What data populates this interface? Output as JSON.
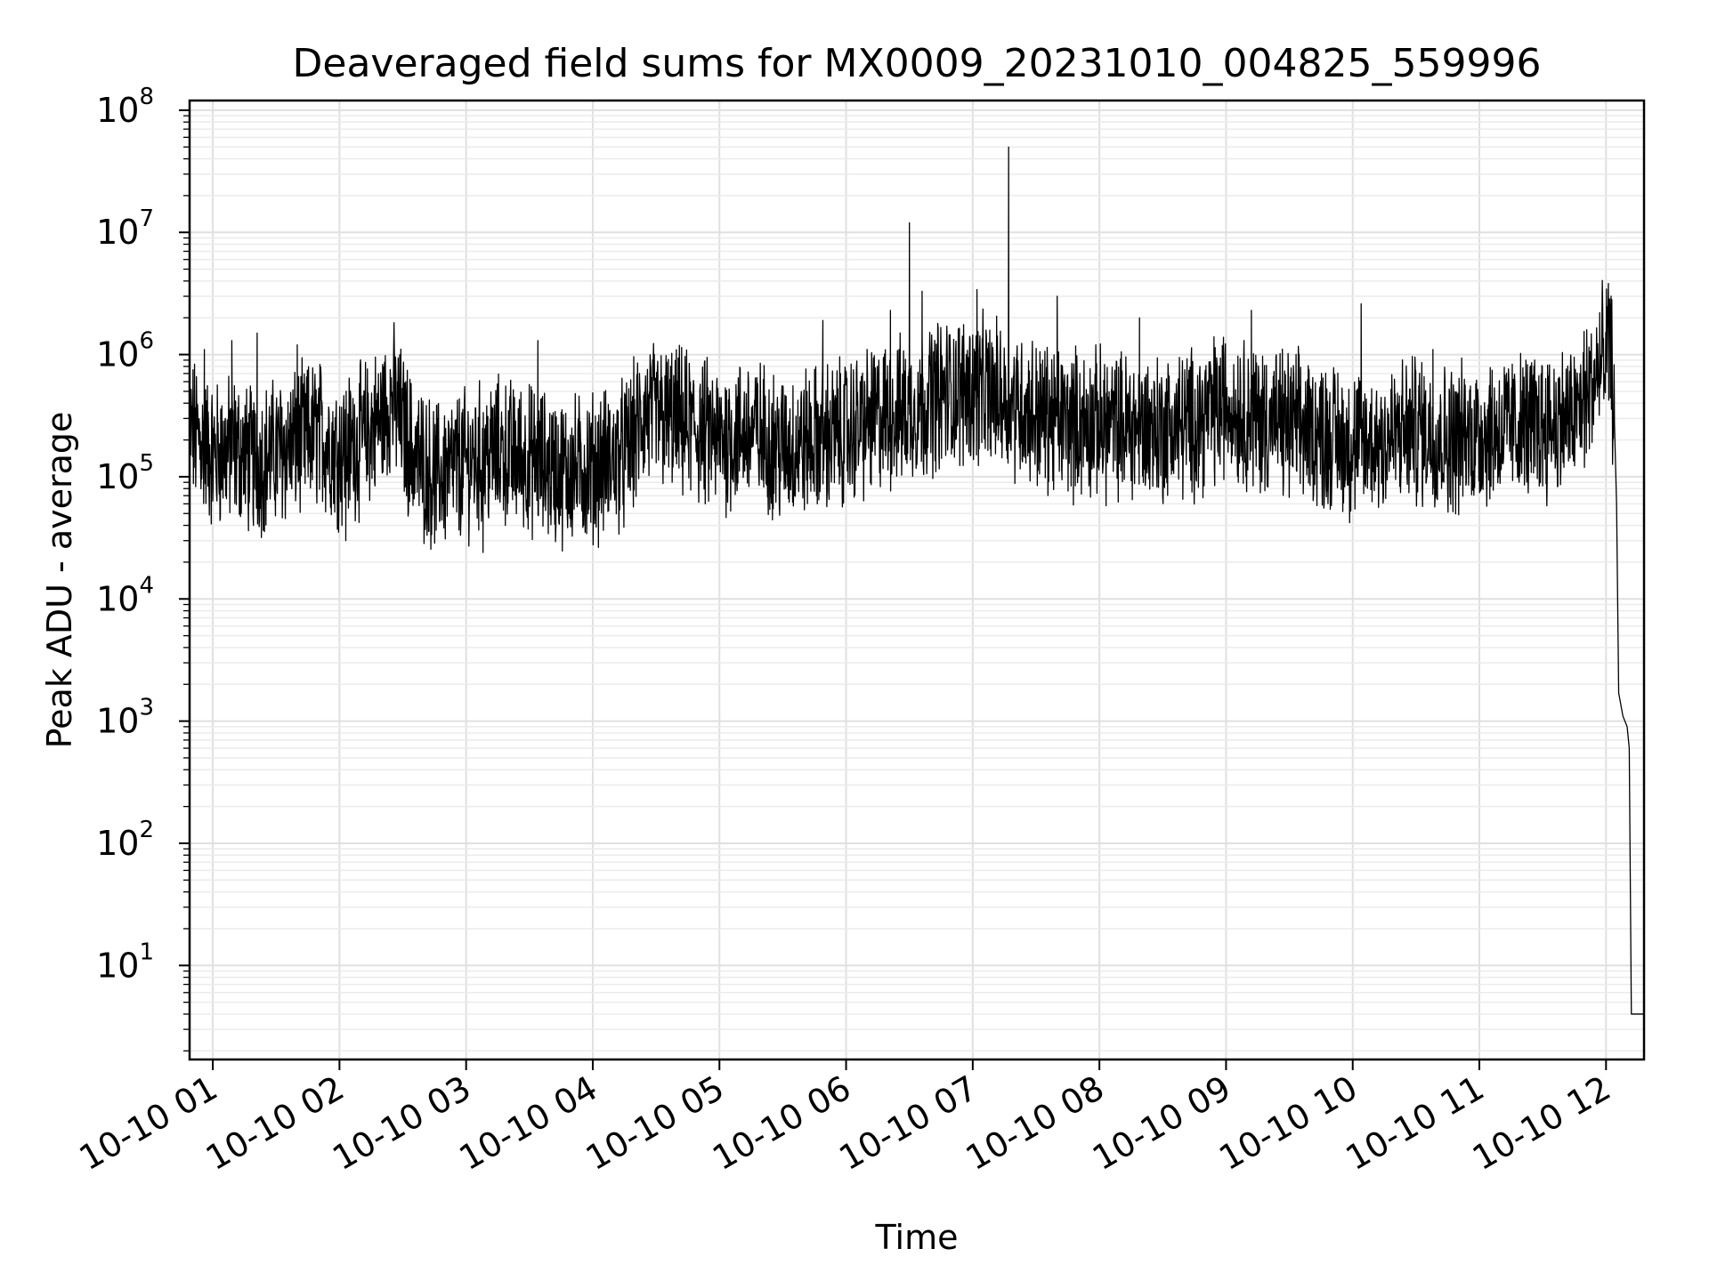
{
  "chart_data": {
    "type": "line",
    "title": "Deaveraged field sums for MX0009_20231010_004825_559996",
    "xlabel": "Time",
    "ylabel": "Peak ADU - average",
    "yscale": "log",
    "grid": true,
    "xlim": [
      "2023-10-10 00:49",
      "2023-10-10 12:18"
    ],
    "ylim": [
      1.7,
      120000000.0
    ],
    "x_tick_labels": [
      "10-10 01",
      "10-10 02",
      "10-10 03",
      "10-10 04",
      "10-10 05",
      "10-10 06",
      "10-10 07",
      "10-10 08",
      "10-10 09",
      "10-10 10",
      "10-10 11",
      "10-10 12"
    ],
    "y_tick_labels": [
      {
        "base": "10",
        "exp": "1"
      },
      {
        "base": "10",
        "exp": "2"
      },
      {
        "base": "10",
        "exp": "3"
      },
      {
        "base": "10",
        "exp": "4"
      },
      {
        "base": "10",
        "exp": "5"
      },
      {
        "base": "10",
        "exp": "6"
      },
      {
        "base": "10",
        "exp": "7"
      },
      {
        "base": "10",
        "exp": "8"
      }
    ],
    "line_color": "#000000",
    "series": [
      {
        "points": [
          [
            "2023-10-10 00:49",
            250000
          ],
          [
            "2023-10-10 00:55",
            190000
          ],
          [
            "2023-10-10 01:00",
            150000
          ],
          [
            "2023-10-10 01:10",
            170000
          ],
          [
            "2023-10-10 01:20",
            130000
          ],
          [
            "2023-10-10 01:30",
            160000
          ],
          [
            "2023-10-10 01:40",
            190000
          ],
          [
            "2023-10-10 01:50",
            230000
          ],
          [
            "2023-10-10 02:00",
            160000
          ],
          [
            "2023-10-10 02:10",
            200000
          ],
          [
            "2023-10-10 02:20",
            300000
          ],
          [
            "2023-10-10 02:25",
            450000
          ],
          [
            "2023-10-10 02:35",
            150000
          ],
          [
            "2023-10-10 02:45",
            100000
          ],
          [
            "2023-10-10 03:00",
            130000
          ],
          [
            "2023-10-10 03:15",
            160000
          ],
          [
            "2023-10-10 03:30",
            140000
          ],
          [
            "2023-10-10 03:45",
            110000
          ],
          [
            "2023-10-10 04:00",
            120000
          ],
          [
            "2023-10-10 04:15",
            150000
          ],
          [
            "2023-10-10 04:25",
            320000
          ],
          [
            "2023-10-10 04:40",
            280000
          ],
          [
            "2023-10-10 05:00",
            200000
          ],
          [
            "2023-10-10 05:15",
            240000
          ],
          [
            "2023-10-10 05:30",
            170000
          ],
          [
            "2023-10-10 05:45",
            200000
          ],
          [
            "2023-10-10 06:00",
            230000
          ],
          [
            "2023-10-10 06:15",
            300000
          ],
          [
            "2023-10-10 06:30",
            350000
          ],
          [
            "2023-10-10 06:45",
            480000
          ],
          [
            "2023-10-10 07:00",
            520000
          ],
          [
            "2023-10-10 07:15",
            450000
          ],
          [
            "2023-10-10 07:30",
            330000
          ],
          [
            "2023-10-10 07:45",
            280000
          ],
          [
            "2023-10-10 08:00",
            270000
          ],
          [
            "2023-10-10 08:15",
            260000
          ],
          [
            "2023-10-10 08:30",
            250000
          ],
          [
            "2023-10-10 08:45",
            280000
          ],
          [
            "2023-10-10 09:00",
            400000
          ],
          [
            "2023-10-10 09:15",
            300000
          ],
          [
            "2023-10-10 09:30",
            260000
          ],
          [
            "2023-10-10 09:45",
            230000
          ],
          [
            "2023-10-10 10:00",
            180000
          ],
          [
            "2023-10-10 10:15",
            200000
          ],
          [
            "2023-10-10 10:30",
            250000
          ],
          [
            "2023-10-10 10:45",
            200000
          ],
          [
            "2023-10-10 11:00",
            230000
          ],
          [
            "2023-10-10 11:15",
            250000
          ],
          [
            "2023-10-10 11:30",
            270000
          ],
          [
            "2023-10-10 11:45",
            300000
          ],
          [
            "2023-10-10 11:58",
            800000
          ],
          [
            "2023-10-10 12:02",
            1200000
          ],
          [
            "2023-10-10 12:04",
            300000
          ],
          [
            "2023-10-10 12:05",
            60000
          ],
          [
            "2023-10-10 12:06",
            1700
          ],
          [
            "2023-10-10 12:08",
            1100
          ],
          [
            "2023-10-10 12:10",
            900
          ],
          [
            "2023-10-10 12:11",
            600
          ],
          [
            "2023-10-10 12:12",
            4
          ],
          [
            "2023-10-10 12:18",
            4
          ]
        ],
        "spikes": [
          [
            "2023-10-10 00:56",
            1100000
          ],
          [
            "2023-10-10 01:09",
            1300000
          ],
          [
            "2023-10-10 01:21",
            1500000
          ],
          [
            "2023-10-10 01:40",
            1200000
          ],
          [
            "2023-10-10 02:03",
            30000
          ],
          [
            "2023-10-10 03:08",
            24000
          ],
          [
            "2023-10-10 03:34",
            1300000
          ],
          [
            "2023-10-10 05:49",
            1900000
          ],
          [
            "2023-10-10 06:21",
            2300000
          ],
          [
            "2023-10-10 06:30",
            12000000
          ],
          [
            "2023-10-10 06:36",
            3300000
          ],
          [
            "2023-10-10 07:02",
            3400000
          ],
          [
            "2023-10-10 07:17",
            50000000
          ],
          [
            "2023-10-10 07:40",
            3000000
          ],
          [
            "2023-10-10 08:19",
            2000000
          ],
          [
            "2023-10-10 09:12",
            2300000
          ],
          [
            "2023-10-10 10:04",
            2600000
          ],
          [
            "2023-10-10 10:38",
            1100000
          ],
          [
            "2023-10-10 11:57",
            2200000
          ],
          [
            "2023-10-10 12:02",
            2500000
          ]
        ]
      }
    ]
  }
}
